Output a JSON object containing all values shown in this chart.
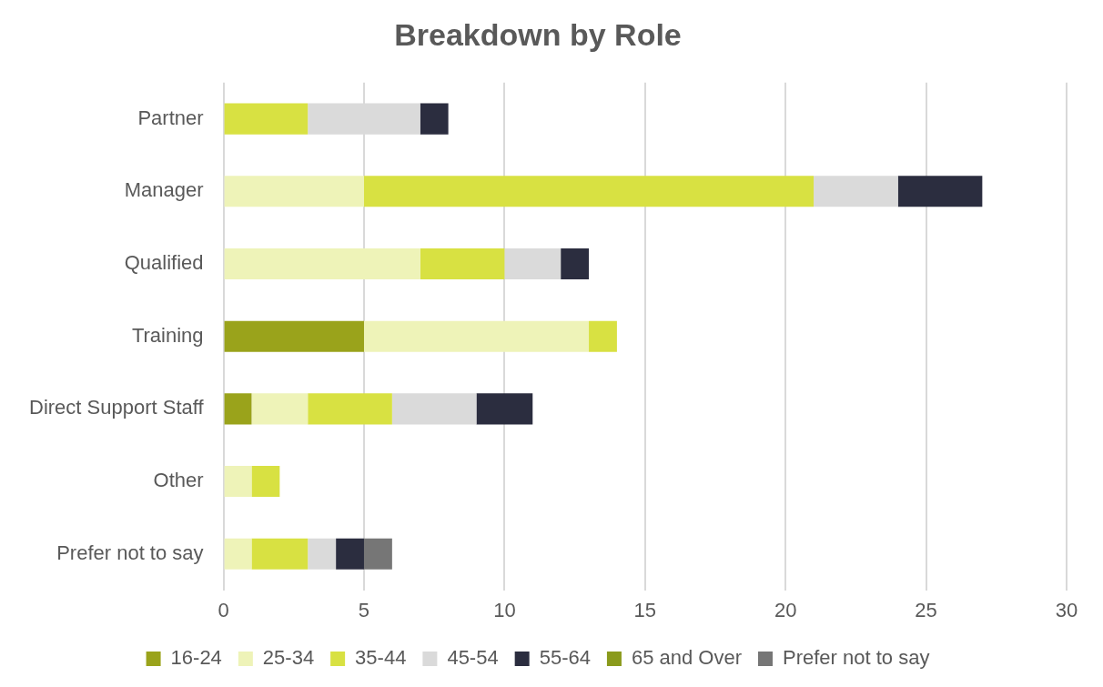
{
  "chart_data": {
    "type": "bar",
    "orientation": "horizontal",
    "stacked": true,
    "title": "Breakdown by Role",
    "categories": [
      "Partner",
      "Manager",
      "Qualified",
      "Training",
      "Direct Support Staff",
      "Other",
      "Prefer not to say"
    ],
    "series": [
      {
        "name": "16-24",
        "color": "#9aa31b",
        "values": [
          null,
          null,
          null,
          5,
          1,
          null,
          null
        ]
      },
      {
        "name": "25-34",
        "color": "#eef3b8",
        "values": [
          null,
          5,
          7,
          8,
          2,
          1,
          1
        ]
      },
      {
        "name": "35-44",
        "color": "#d8e142",
        "values": [
          3,
          16,
          3,
          1,
          3,
          1,
          2
        ]
      },
      {
        "name": "45-54",
        "color": "#dadada",
        "values": [
          4,
          3,
          2,
          null,
          3,
          null,
          1
        ]
      },
      {
        "name": "55-64",
        "color": "#2b2d3f",
        "values": [
          1,
          3,
          1,
          null,
          2,
          null,
          1
        ]
      },
      {
        "name": "65 and Over",
        "color": "#8a9a1c",
        "values": [
          null,
          null,
          null,
          null,
          null,
          null,
          null
        ]
      },
      {
        "name": "Prefer not to say",
        "color": "#767676",
        "values": [
          null,
          null,
          null,
          null,
          null,
          null,
          1
        ]
      }
    ],
    "xlim": [
      0,
      30
    ],
    "xticks": [
      0,
      5,
      10,
      15,
      20,
      25,
      30
    ],
    "grid": "x",
    "legend": "bottom"
  }
}
